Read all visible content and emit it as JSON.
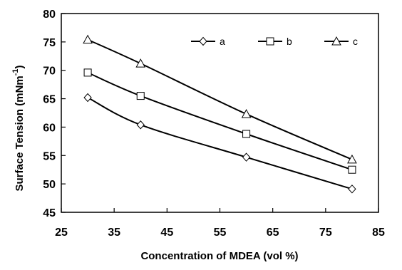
{
  "chart_data": {
    "type": "line",
    "title": "",
    "xlabel": "Concentration of MDEA (vol %)",
    "ylabel": "Surface Tension (mNm",
    "ylabel_superscript": "-1",
    "ylabel_suffix": ")",
    "xlim": [
      25,
      85
    ],
    "ylim": [
      45,
      80
    ],
    "xticks": [
      25,
      35,
      45,
      55,
      65,
      75,
      85
    ],
    "yticks": [
      45,
      50,
      55,
      60,
      65,
      70,
      75,
      80
    ],
    "grid": false,
    "legend_position": "top-right",
    "series": [
      {
        "name": "a",
        "marker": "diamond",
        "x": [
          30,
          40,
          60,
          80
        ],
        "y": [
          65.2,
          60.4,
          54.7,
          49.1
        ]
      },
      {
        "name": "b",
        "marker": "square",
        "x": [
          30,
          40,
          60,
          80
        ],
        "y": [
          69.6,
          65.5,
          58.8,
          52.5
        ]
      },
      {
        "name": "c",
        "marker": "triangle",
        "x": [
          30,
          40,
          60,
          80
        ],
        "y": [
          75.4,
          71.2,
          62.3,
          54.3
        ]
      }
    ],
    "colors": {
      "line": "#000000",
      "marker_fill": "#ffffff"
    }
  }
}
